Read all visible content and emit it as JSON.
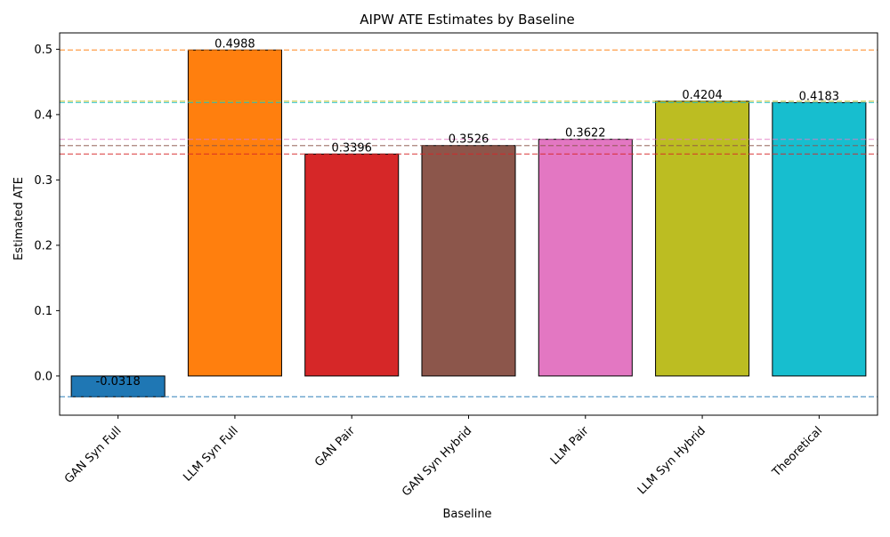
{
  "chart_data": {
    "type": "bar",
    "title": "AIPW ATE Estimates by Baseline",
    "xlabel": "Baseline",
    "ylabel": "Estimated ATE",
    "categories": [
      "GAN Syn Full",
      "LLM Syn Full",
      "GAN Pair",
      "GAN Syn Hybrid",
      "LLM Pair",
      "LLM Syn Hybrid",
      "Theoretical"
    ],
    "values": [
      -0.0318,
      0.4988,
      0.3396,
      0.3526,
      0.3622,
      0.4204,
      0.4183
    ],
    "value_labels": [
      "-0.0318",
      "0.4988",
      "0.3396",
      "0.3526",
      "0.3622",
      "0.4204",
      "0.4183"
    ],
    "colors": [
      "#1f77b4",
      "#ff7f0e",
      "#d62728",
      "#8c564b",
      "#e377c2",
      "#bcbd22",
      "#17becf"
    ],
    "ylim": [
      -0.06,
      0.525
    ],
    "yticks": [
      0.0,
      0.1,
      0.2,
      0.3,
      0.4,
      0.5
    ],
    "ytick_labels": [
      "0.0",
      "0.1",
      "0.2",
      "0.3",
      "0.4",
      "0.5"
    ],
    "reference_lines": [
      {
        "value": -0.0318,
        "color": "#1f77b4"
      },
      {
        "value": 0.4988,
        "color": "#ff7f0e"
      },
      {
        "value": 0.3396,
        "color": "#d62728"
      },
      {
        "value": 0.3526,
        "color": "#8c564b"
      },
      {
        "value": 0.3622,
        "color": "#e377c2"
      },
      {
        "value": 0.4204,
        "color": "#bcbd22"
      },
      {
        "value": 0.4183,
        "color": "#17becf"
      }
    ],
    "grid": false,
    "legend": "none"
  }
}
